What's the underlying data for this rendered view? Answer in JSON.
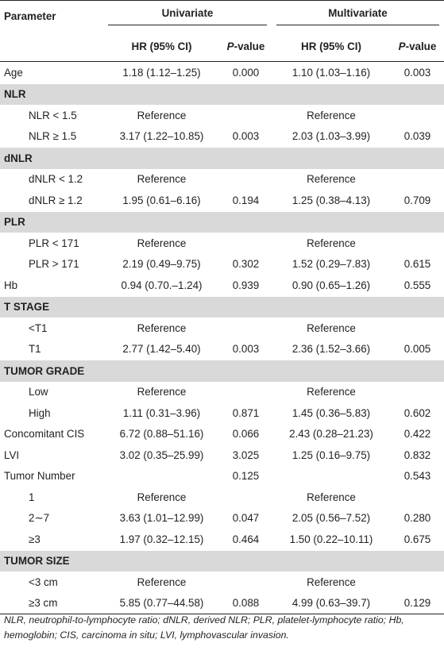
{
  "header": {
    "parameter": "Parameter",
    "univariate": "Univariate",
    "multivariate": "Multivariate",
    "hr": "HR (95% CI)",
    "p_prefix": "P",
    "p_suffix": "-value"
  },
  "rows": [
    {
      "type": "data",
      "indent": false,
      "label": "Age",
      "u_hr": "1.18 (1.12–1.25)",
      "u_p": "0.000",
      "m_hr": "1.10 (1.03–1.16)",
      "m_p": "0.003"
    },
    {
      "type": "section",
      "label": "NLR"
    },
    {
      "type": "data",
      "indent": true,
      "label": "NLR < 1.5",
      "u_hr": "Reference",
      "u_p": "",
      "m_hr": "Reference",
      "m_p": ""
    },
    {
      "type": "data",
      "indent": true,
      "label": "NLR ≥ 1.5",
      "u_hr": "3.17 (1.22–10.85)",
      "u_p": "0.003",
      "m_hr": "2.03 (1.03–3.99)",
      "m_p": "0.039"
    },
    {
      "type": "section",
      "label": "dNLR"
    },
    {
      "type": "data",
      "indent": true,
      "label": "dNLR < 1.2",
      "u_hr": "Reference",
      "u_p": "",
      "m_hr": "Reference",
      "m_p": ""
    },
    {
      "type": "data",
      "indent": true,
      "label": "dNLR ≥ 1.2",
      "u_hr": "1.95 (0.61–6.16)",
      "u_p": "0.194",
      "m_hr": "1.25 (0.38–4.13)",
      "m_p": "0.709"
    },
    {
      "type": "section",
      "label": "PLR"
    },
    {
      "type": "data",
      "indent": true,
      "label": "PLR < 171",
      "u_hr": "Reference",
      "u_p": "",
      "m_hr": "Reference",
      "m_p": ""
    },
    {
      "type": "data",
      "indent": true,
      "label": "PLR > 171",
      "u_hr": "2.19 (0.49–9.75)",
      "u_p": "0.302",
      "m_hr": "1.52 (0.29–7.83)",
      "m_p": "0.615"
    },
    {
      "type": "data",
      "indent": false,
      "label": "Hb",
      "u_hr": "0.94 (0.70.–1.24)",
      "u_p": "0.939",
      "m_hr": "0.90 (0.65–1.26)",
      "m_p": "0.555"
    },
    {
      "type": "section",
      "label": "T STAGE"
    },
    {
      "type": "data",
      "indent": true,
      "label": "<T1",
      "u_hr": "Reference",
      "u_p": "",
      "m_hr": "Reference",
      "m_p": ""
    },
    {
      "type": "data",
      "indent": true,
      "label": "T1",
      "u_hr": "2.77 (1.42–5.40)",
      "u_p": "0.003",
      "m_hr": "2.36 (1.52–3.66)",
      "m_p": "0.005"
    },
    {
      "type": "section",
      "label": "TUMOR GRADE"
    },
    {
      "type": "data",
      "indent": true,
      "label": "Low",
      "u_hr": "Reference",
      "u_p": "",
      "m_hr": "Reference",
      "m_p": ""
    },
    {
      "type": "data",
      "indent": true,
      "label": "High",
      "u_hr": "1.11 (0.31–3.96)",
      "u_p": "0.871",
      "m_hr": "1.45 (0.36–5.83)",
      "m_p": "0.602"
    },
    {
      "type": "data",
      "indent": false,
      "label": "Concomitant CIS",
      "u_hr": "6.72 (0.88–51.16)",
      "u_p": "0.066",
      "m_hr": "2.43 (0.28–21.23)",
      "m_p": "0.422"
    },
    {
      "type": "data",
      "indent": false,
      "label": "LVI",
      "u_hr": "3.02 (0.35–25.99)",
      "u_p": "3.025",
      "m_hr": "1.25 (0.16–9.75)",
      "m_p": "0.832"
    },
    {
      "type": "data",
      "indent": false,
      "label": "Tumor Number",
      "u_hr": "",
      "u_p": "0.125",
      "m_hr": "",
      "m_p": "0.543"
    },
    {
      "type": "data",
      "indent": true,
      "label": "1",
      "u_hr": "Reference",
      "u_p": "",
      "m_hr": "Reference",
      "m_p": ""
    },
    {
      "type": "data",
      "indent": true,
      "label": "2∼7",
      "u_hr": "3.63 (1.01–12.99)",
      "u_p": "0.047",
      "m_hr": "2.05 (0.56–7.52)",
      "m_p": "0.280"
    },
    {
      "type": "data",
      "indent": true,
      "label": "≥3",
      "u_hr": "1.97 (0.32–12.15)",
      "u_p": "0.464",
      "m_hr": "1.50 (0.22–10.11)",
      "m_p": "0.675"
    },
    {
      "type": "section",
      "label": "TUMOR SIZE"
    },
    {
      "type": "data",
      "indent": true,
      "label": "<3 cm",
      "u_hr": "Reference",
      "u_p": "",
      "m_hr": "Reference",
      "m_p": ""
    },
    {
      "type": "data",
      "indent": true,
      "label": "≥3 cm",
      "u_hr": "5.85 (0.77–44.58)",
      "u_p": "0.088",
      "m_hr": "4.99 (0.63–39.7)",
      "m_p": "0.129"
    }
  ],
  "footnote": "NLR, neutrophil-to-lymphocyte ratio; dNLR, derived NLR; PLR, platelet-lymphocyte ratio; Hb, hemoglobin; CIS, carcinoma in situ; LVI, lymphovascular invasion."
}
